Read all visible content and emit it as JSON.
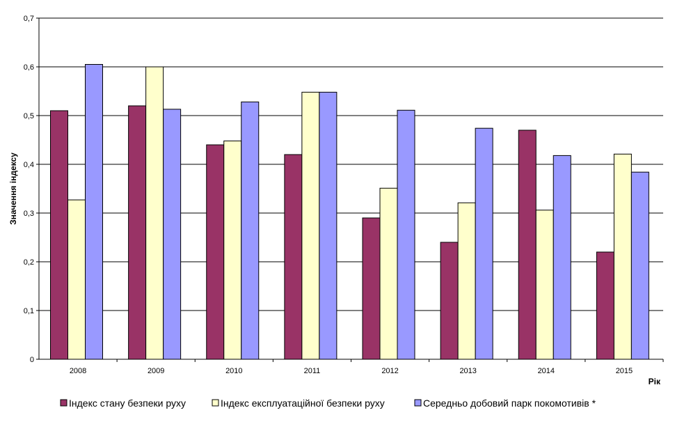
{
  "chart_data": {
    "type": "bar",
    "title": "",
    "xlabel": "Рік",
    "ylabel": "Значення індексу",
    "categories": [
      "2008",
      "2009",
      "2010",
      "2011",
      "2012",
      "2013",
      "2014",
      "2015"
    ],
    "y_ticks": [
      "0",
      "0,1",
      "0,2",
      "0,3",
      "0,4",
      "0,5",
      "0,6",
      "0,7"
    ],
    "ylim": [
      0,
      0.7
    ],
    "grid": true,
    "legend_position": "bottom",
    "series": [
      {
        "name": "Індекс стану безпеки руху",
        "color": "#993366",
        "values": [
          0.51,
          0.52,
          0.44,
          0.42,
          0.29,
          0.24,
          0.47,
          0.22
        ]
      },
      {
        "name": "Індекс експлуатаційної безпеки руху",
        "color": "#FFFFCC",
        "values": [
          0.327,
          0.6,
          0.448,
          0.548,
          0.351,
          0.321,
          0.306,
          0.421
        ]
      },
      {
        "name": "Середньо добовий парк покомотивів *",
        "color": "#9999FF",
        "values": [
          0.605,
          0.513,
          0.528,
          0.548,
          0.511,
          0.474,
          0.418,
          0.384
        ]
      }
    ]
  }
}
